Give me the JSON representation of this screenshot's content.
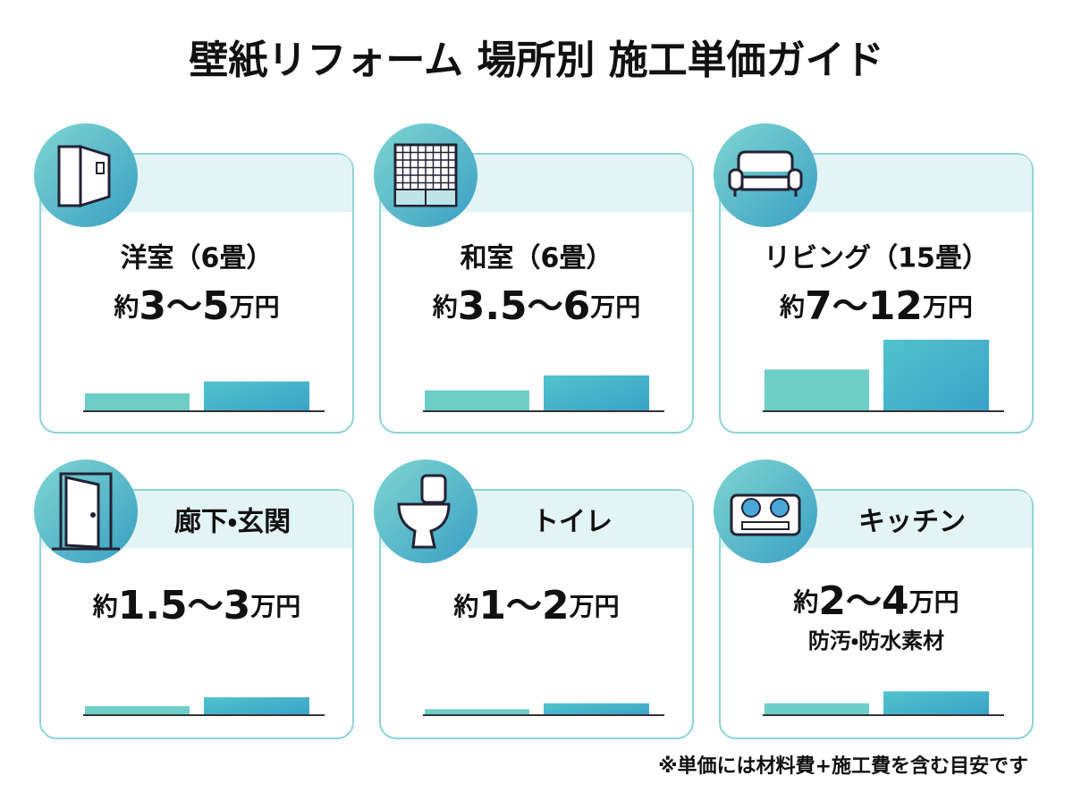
{
  "title": "壁紙リフォーム 場所別 施工単価ガイド",
  "price_format": {
    "prefix": "約",
    "separator": "〜",
    "unit": "万円"
  },
  "cards": [
    {
      "name": "洋室（6畳）",
      "low": 3,
      "high": 5
    },
    {
      "name": "和室（6畳）",
      "low": 3.5,
      "high": 6
    },
    {
      "name": "リビング（15畳）",
      "low": 7,
      "high": 12
    },
    {
      "name": "廊下・玄関",
      "low": 1.5,
      "high": 3
    },
    {
      "name": "トイレ",
      "low": 1,
      "high": 2
    },
    {
      "name": "キッチン",
      "low": 2,
      "high": 4,
      "note": "防汚・防水素材"
    }
  ],
  "footnote": "※単価には材料費+施工費を含む目安です"
}
